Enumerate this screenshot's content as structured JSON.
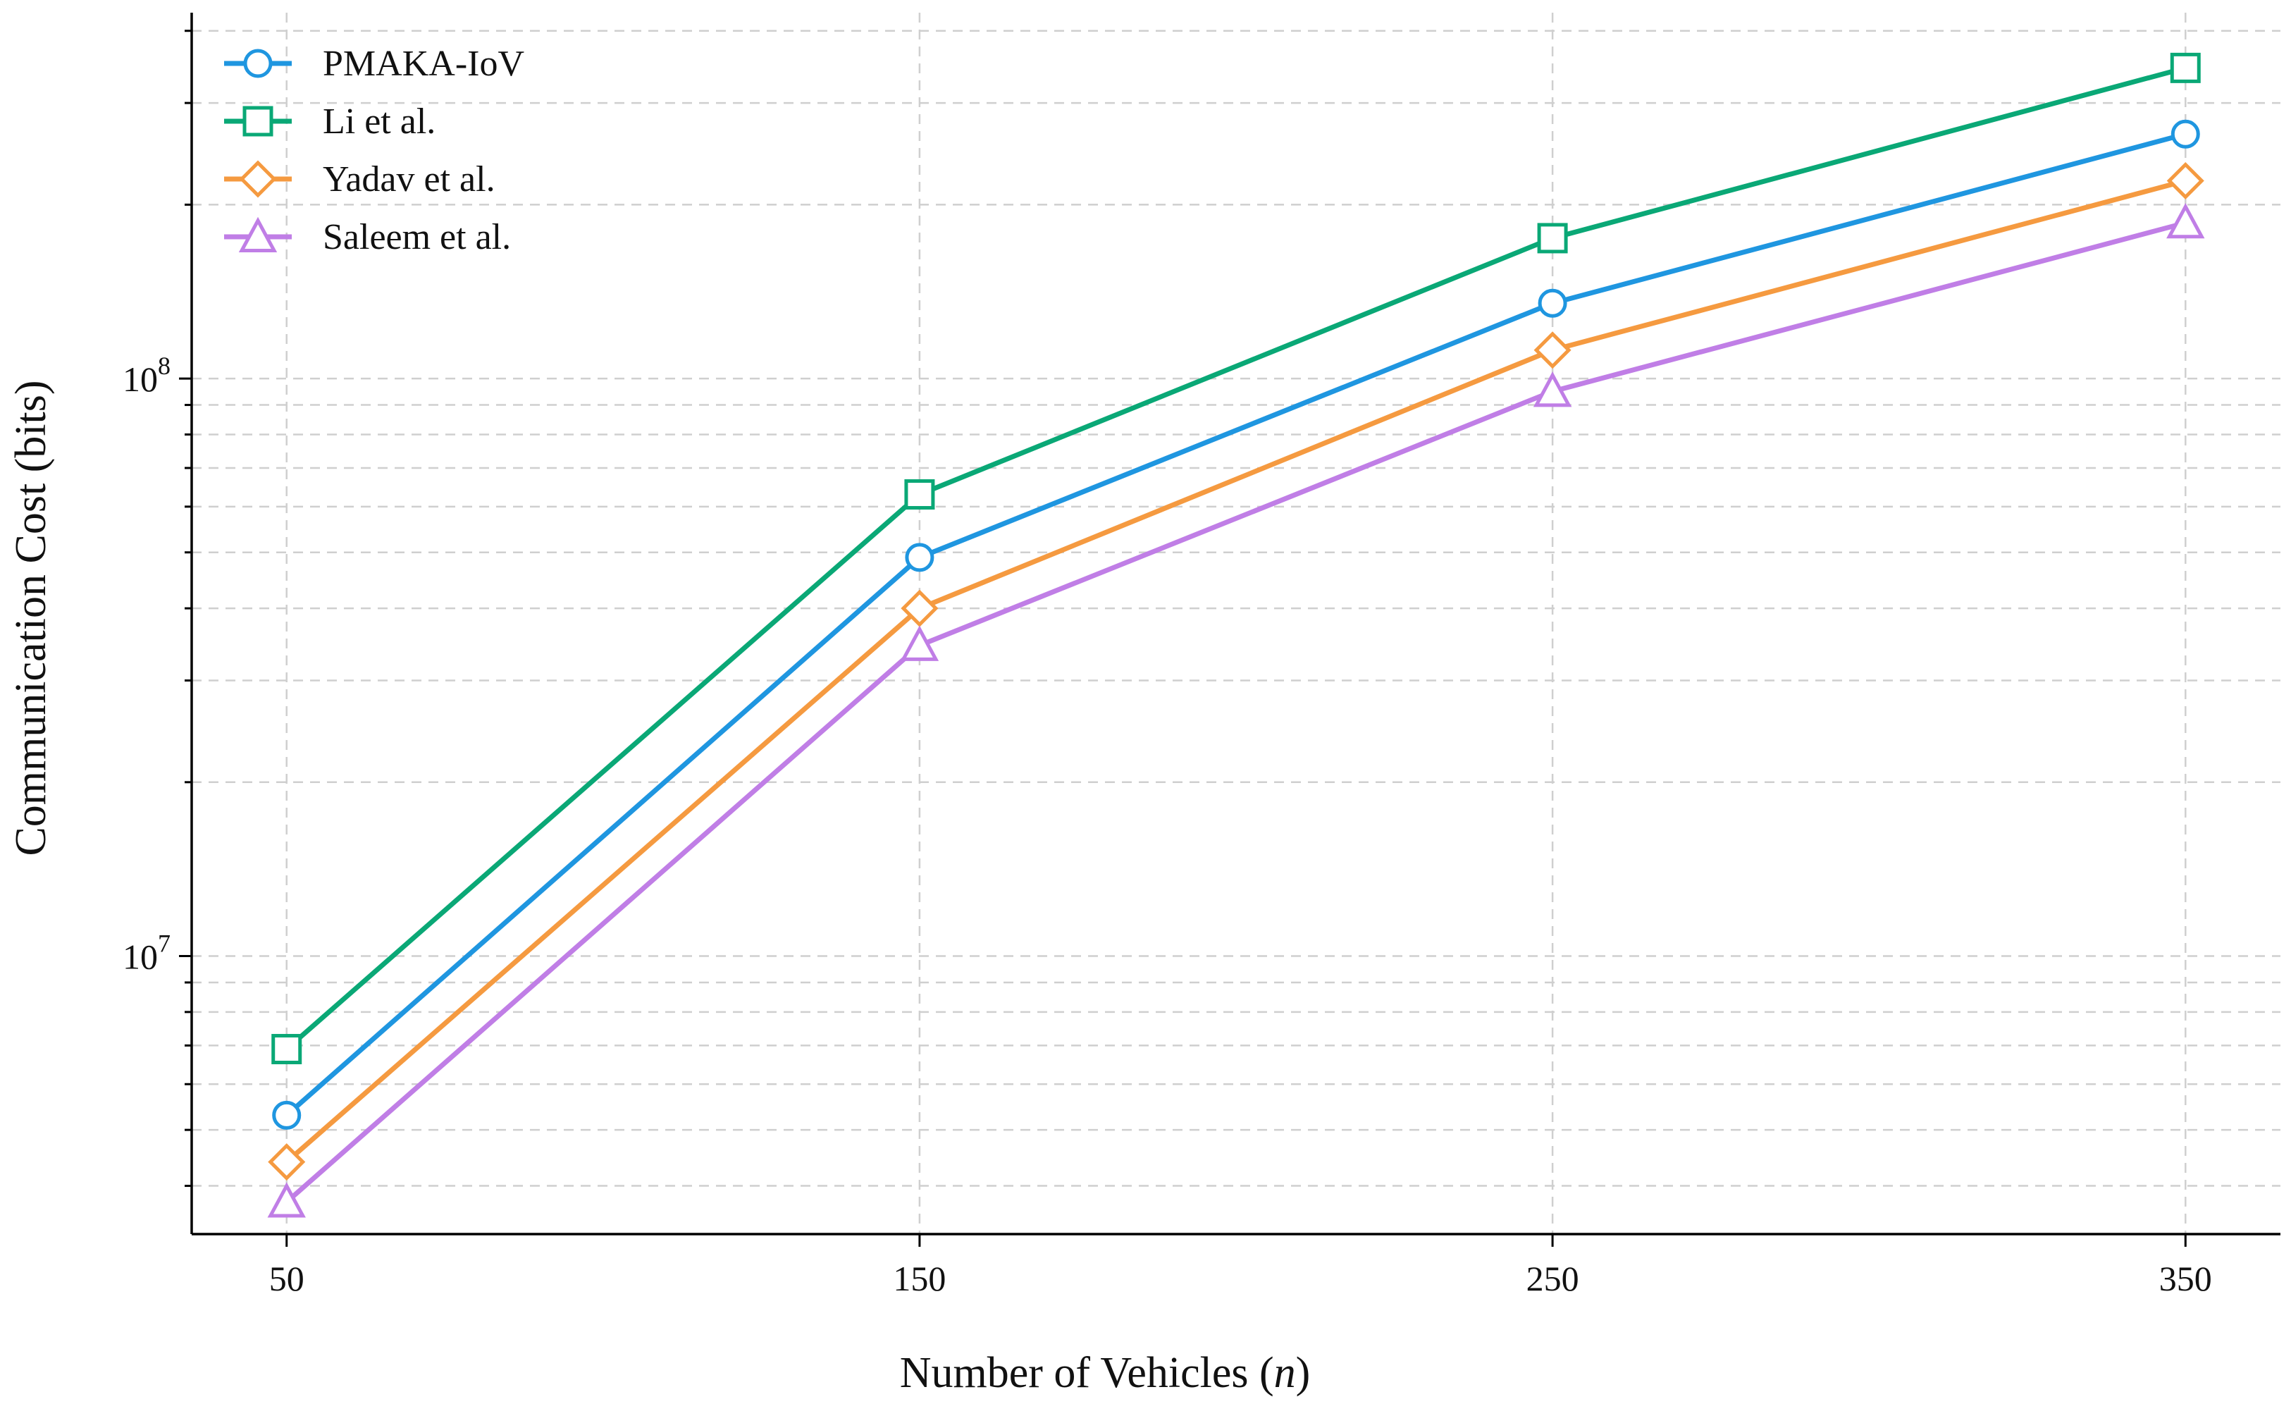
{
  "chart_data": {
    "type": "line",
    "xlabel": "Number of Vehicles (n)",
    "xlabel_prefix": "Number of Vehicles (",
    "xlabel_var": "n",
    "xlabel_suffix": ")",
    "ylabel": "Communication Cost (bits)",
    "x": [
      50,
      150,
      250,
      350
    ],
    "x_tick_labels": [
      "50",
      "150",
      "250",
      "350"
    ],
    "y_scale": "log",
    "y_ticks": [
      10000000,
      100000000
    ],
    "y_tick_labels": [
      {
        "base": "10",
        "exp": "7"
      },
      {
        "base": "10",
        "exp": "8"
      }
    ],
    "xlim": [
      35,
      365
    ],
    "ylim": [
      3300000,
      430000000
    ],
    "grid": true,
    "legend_position": "top-left",
    "series": [
      {
        "name": "PMAKA-IoV",
        "marker": "circle",
        "color": "#1f96e0",
        "values": [
          5300000,
          49000000,
          135000000,
          265000000
        ]
      },
      {
        "name": "Li et al.",
        "marker": "square",
        "color": "#0aa876",
        "values": [
          6900000,
          63000000,
          175000000,
          345000000
        ]
      },
      {
        "name": "Yadav et al.",
        "marker": "diamond",
        "color": "#f59a40",
        "values": [
          4400000,
          40000000,
          112000000,
          220000000
        ]
      },
      {
        "name": "Saleem et al.",
        "marker": "triangle",
        "color": "#c07ee6",
        "values": [
          3750000,
          34500000,
          95000000,
          186000000
        ]
      }
    ]
  }
}
